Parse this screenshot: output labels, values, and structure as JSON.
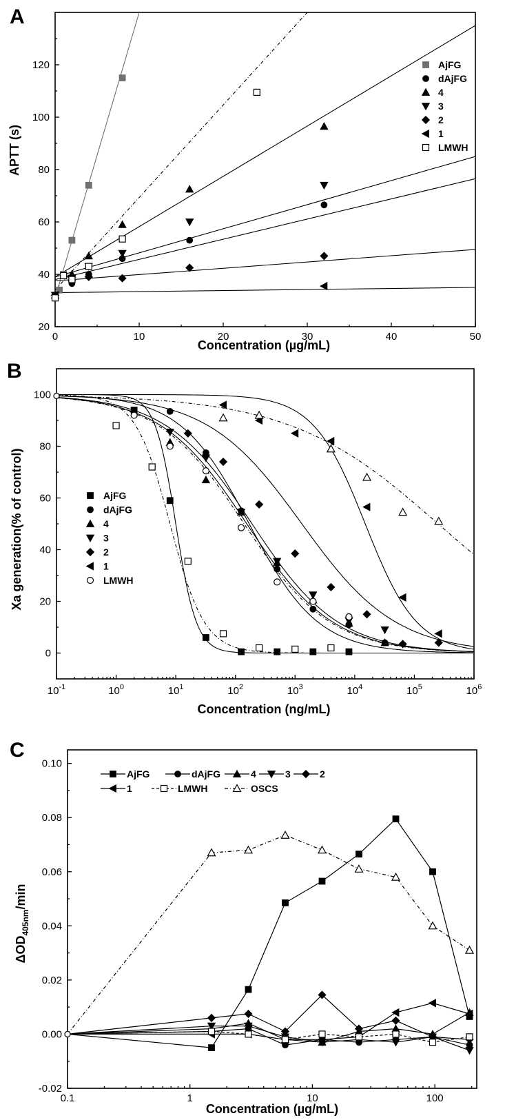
{
  "chart_data": [
    {
      "type": "scatter",
      "panel": "A",
      "xlabel": "Concentration (µg/mL)",
      "ylabel": "APTT (s)",
      "xlim": [
        0,
        50
      ],
      "ylim": [
        20,
        140
      ],
      "xticks": [
        "0",
        "10",
        "20",
        "30",
        "40",
        "50"
      ],
      "yticks": [
        "20",
        "40",
        "60",
        "80",
        "100",
        "120"
      ],
      "legend_position": "right",
      "series": [
        {
          "name": "AjFG",
          "marker": "square",
          "color": "#707070",
          "dash": "",
          "x": [
            0,
            0.5,
            1,
            2,
            4,
            8
          ],
          "y": [
            32,
            34,
            40,
            53,
            74,
            115
          ],
          "fit": [
            0,
            31,
            10,
            140
          ]
        },
        {
          "name": "dAjFG",
          "marker": "circle",
          "color": "#000000",
          "dash": "",
          "x": [
            0,
            2,
            4,
            8,
            16,
            32
          ],
          "y": [
            32,
            36.5,
            40,
            46,
            53,
            66.5
          ],
          "fit": [
            0,
            38,
            50,
            76.5
          ]
        },
        {
          "name": "4",
          "marker": "triangle-up",
          "color": "#000000",
          "dash": "",
          "x": [
            0,
            2,
            4,
            8,
            16,
            32
          ],
          "y": [
            32,
            40,
            47,
            59,
            72.5,
            96.5
          ],
          "fit": [
            0,
            39,
            50,
            135
          ]
        },
        {
          "name": "3",
          "marker": "triangle-down",
          "color": "#000000",
          "dash": "",
          "x": [
            0,
            2,
            4,
            8,
            16,
            32
          ],
          "y": [
            32,
            38.5,
            43,
            48,
            60,
            74
          ],
          "fit": [
            0,
            39,
            50,
            85
          ]
        },
        {
          "name": "2",
          "marker": "diamond",
          "color": "#000000",
          "dash": "",
          "x": [
            0,
            2,
            4,
            8,
            16,
            32
          ],
          "y": [
            32,
            37.5,
            39,
            38.5,
            42.5,
            47
          ],
          "fit": [
            0,
            37.5,
            50,
            49.5
          ]
        },
        {
          "name": "1",
          "marker": "triangle-left",
          "color": "#000000",
          "dash": "",
          "x": [
            0,
            32
          ],
          "y": [
            32,
            35.5
          ],
          "fit": [
            0,
            33,
            50,
            35
          ]
        },
        {
          "name": "LMWH",
          "marker": "open-square",
          "color": "#000000",
          "dash": "5,3,1,3",
          "x": [
            0,
            1,
            2,
            4,
            8,
            24
          ],
          "y": [
            31,
            39.5,
            38,
            43,
            53.5,
            109.5
          ],
          "fit": [
            0,
            34,
            30,
            140
          ]
        }
      ]
    },
    {
      "type": "scatter",
      "panel": "B",
      "xlabel": "Concentration (ng/mL)",
      "ylabel": "Xa generation(% of control)",
      "xscale": "log",
      "xlim": [
        0.1,
        1000000
      ],
      "ylim": [
        -10,
        110
      ],
      "xticks": [
        "-1",
        "0",
        "1",
        "2",
        "3",
        "4",
        "5",
        "6"
      ],
      "yticks": [
        "0",
        "20",
        "40",
        "60",
        "80",
        "100"
      ],
      "legend_position": "lower-left",
      "series": [
        {
          "name": "AjFG",
          "marker": "square",
          "color": "#000000",
          "dash": "",
          "x": [
            2,
            8,
            32,
            125,
            500,
            2000,
            8000
          ],
          "y": [
            94,
            59,
            6,
            0.5,
            0.5,
            0.5,
            0.5
          ],
          "ic50": 10,
          "hill": 2.5
        },
        {
          "name": "dAjFG",
          "marker": "circle",
          "color": "#000000",
          "dash": "",
          "x": [
            8,
            32,
            125,
            500,
            2000,
            8000,
            32000
          ],
          "y": [
            93.5,
            77.5,
            55,
            32.5,
            17,
            11,
            4
          ],
          "ic50": 170,
          "hill": 0.75
        },
        {
          "name": "4",
          "marker": "triangle-up",
          "color": "#000000",
          "dash": "",
          "x": [
            8,
            32,
            125,
            500,
            2000,
            8000,
            32000
          ],
          "y": [
            81.5,
            67,
            54.5,
            35,
            20.5,
            11.5,
            4
          ],
          "ic50": 155,
          "hill": 0.6
        },
        {
          "name": "3",
          "marker": "triangle-down",
          "color": "#000000",
          "dash": "",
          "x": [
            8,
            32,
            125,
            500,
            2000,
            8000,
            32000
          ],
          "y": [
            85.5,
            75.5,
            54.5,
            35.5,
            22.5,
            12.5,
            9
          ],
          "ic50": 190,
          "hill": 0.6
        },
        {
          "name": "2",
          "marker": "diamond",
          "color": "#000000",
          "dash": "",
          "x": [
            16,
            62.5,
            250,
            1000,
            4000,
            16000,
            64000,
            256000
          ],
          "y": [
            85,
            74,
            57.5,
            38.5,
            25.5,
            15,
            3.5,
            4
          ],
          "ic50": 1300,
          "hill": 0.55
        },
        {
          "name": "1",
          "marker": "triangle-left",
          "color": "#000000",
          "dash": "",
          "x": [
            62.5,
            250,
            1000,
            4000,
            16000,
            64000,
            256000
          ],
          "y": [
            96,
            90,
            85,
            82,
            56.5,
            21.5,
            7.5
          ],
          "ic50": 15000,
          "hill": 1.0
        },
        {
          "name": "LMWH",
          "marker": "open-circle",
          "color": "#000000",
          "dash": "5,3,1,3",
          "x": [
            2,
            8,
            32,
            125,
            500,
            2000,
            8000
          ],
          "y": [
            92,
            80,
            70.5,
            48.5,
            27.5,
            20,
            14
          ],
          "ic50": 140,
          "hill": 0.6
        },
        {
          "name": "",
          "marker": "open-square",
          "color": "#000000",
          "dash": "5,3,1,3",
          "x": [
            1,
            4,
            16,
            62.5,
            250,
            1000,
            4000
          ],
          "y": [
            88,
            72,
            35.5,
            7.5,
            2,
            1.5,
            2
          ],
          "ic50": 8,
          "hill": 1.5
        },
        {
          "name": "",
          "marker": "open-triangle",
          "color": "#000000",
          "dash": "5,3,1,3",
          "x": [
            62.5,
            250,
            4000,
            16000,
            64000,
            256000
          ],
          "y": [
            91,
            92,
            79,
            68,
            54.5,
            51
          ],
          "ic50": 250000,
          "hill": 0.35
        }
      ]
    },
    {
      "type": "line",
      "panel": "C",
      "xlabel": "Concentration (µg/mL)",
      "ylabel": "ΔOD",
      "ylabel_sub": "405nm",
      "ylabel_suffix": "/min",
      "xscale": "log",
      "xlim": [
        0.1,
        220
      ],
      "ylim": [
        -0.02,
        0.105
      ],
      "xticks": [
        "0.1",
        "1",
        "10",
        "100"
      ],
      "yticks": [
        "-0.02",
        "0.00",
        "0.02",
        "0.04",
        "0.06",
        "0.08",
        "0.10"
      ],
      "legend_position": "top",
      "series": [
        {
          "name": "AjFG",
          "marker": "square",
          "color": "#000000",
          "dash": "",
          "x": [
            0.1,
            1.5,
            3,
            6,
            12,
            24,
            48,
            96,
            192
          ],
          "y": [
            0,
            -0.005,
            0.0165,
            0.0485,
            0.0565,
            0.0665,
            0.0795,
            0.06,
            0.0065
          ]
        },
        {
          "name": "dAjFG",
          "marker": "circle",
          "color": "#000000",
          "dash": "",
          "x": [
            0.1,
            1.5,
            3,
            6,
            12,
            24,
            48,
            96,
            192
          ],
          "y": [
            0,
            0.001,
            0.002,
            -0.004,
            -0.002,
            -0.003,
            -0.002,
            -0.001,
            -0.004
          ]
        },
        {
          "name": "4",
          "marker": "triangle-up",
          "color": "#000000",
          "dash": "",
          "x": [
            0.1,
            1.5,
            3,
            6,
            12,
            24,
            48,
            96,
            192
          ],
          "y": [
            0,
            0.002,
            0.004,
            -0.002,
            -0.003,
            0.001,
            0.002,
            0.0,
            0.008
          ]
        },
        {
          "name": "3",
          "marker": "triangle-down",
          "color": "#000000",
          "dash": "",
          "x": [
            0.1,
            1.5,
            3,
            6,
            12,
            24,
            48,
            96,
            192
          ],
          "y": [
            0,
            0.003,
            0.003,
            -0.001,
            -0.003,
            -0.002,
            -0.003,
            -0.001,
            -0.006
          ]
        },
        {
          "name": "2",
          "marker": "diamond",
          "color": "#000000",
          "dash": "",
          "x": [
            0.1,
            1.5,
            3,
            6,
            12,
            24,
            48,
            96,
            192
          ],
          "y": [
            0,
            0.006,
            0.0075,
            0.001,
            0.0145,
            0.002,
            0.005,
            -0.001,
            -0.002
          ]
        },
        {
          "name": "1",
          "marker": "triangle-left",
          "color": "#000000",
          "dash": "",
          "x": [
            0.1,
            1.5,
            3,
            6,
            12,
            24,
            48,
            96,
            192
          ],
          "y": [
            0,
            0.0,
            0.0,
            -0.002,
            -0.002,
            -0.001,
            0.008,
            0.0115,
            0.0075
          ]
        },
        {
          "name": "LMWH",
          "marker": "open-square",
          "color": "#000000",
          "dash": "4,3",
          "x": [
            0.1,
            1.5,
            3,
            6,
            12,
            24,
            48,
            96,
            192
          ],
          "y": [
            0,
            0.001,
            0.0,
            -0.002,
            0.0,
            -0.001,
            0.0,
            -0.003,
            -0.001
          ]
        },
        {
          "name": "OSCS",
          "marker": "open-triangle",
          "color": "#000000",
          "dash": "5,3,1,3",
          "x": [
            0.1,
            1.5,
            3,
            6,
            12,
            24,
            48,
            96,
            192
          ],
          "y": [
            0,
            0.067,
            0.068,
            0.0735,
            0.068,
            0.061,
            0.058,
            0.04,
            0.031
          ]
        }
      ]
    }
  ]
}
